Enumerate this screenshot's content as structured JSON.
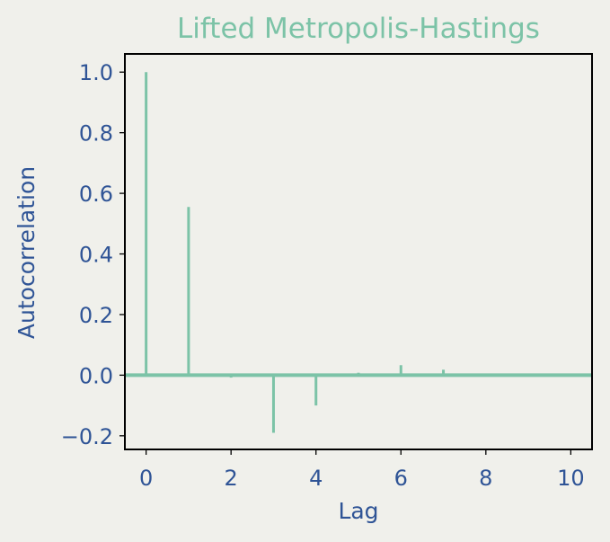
{
  "chart_data": {
    "type": "bar",
    "title": "Lifted Metropolis-Hastings",
    "xlabel": "Lag",
    "ylabel": "Autocorrelation",
    "x": [
      0,
      1,
      2,
      3,
      4,
      5,
      6,
      7
    ],
    "values": [
      1.0,
      0.555,
      -0.008,
      -0.19,
      -0.1,
      0.008,
      0.033,
      0.018
    ],
    "xlim": [
      -0.5,
      10.5
    ],
    "ylim": [
      -0.245,
      1.06
    ],
    "xticks": [
      0,
      2,
      4,
      6,
      8,
      10
    ],
    "xtick_labels": [
      "0",
      "2",
      "4",
      "6",
      "8",
      "10"
    ],
    "yticks": [
      -0.2,
      0.0,
      0.2,
      0.4,
      0.6,
      0.8,
      1.0
    ],
    "ytick_labels": [
      "−0.2",
      "0.0",
      "0.2",
      "0.4",
      "0.6",
      "0.8",
      "1.0"
    ],
    "baseline": 0,
    "grid": false,
    "colors": {
      "stem": "#7cc3a7",
      "title": "#7cc3a7",
      "labels": "#2f5496",
      "background": "#f0f0eb"
    }
  }
}
